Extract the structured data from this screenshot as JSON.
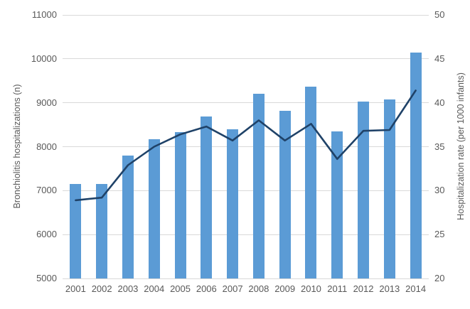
{
  "chart_data": {
    "type": "combo",
    "title": "",
    "categories": [
      "2001",
      "2002",
      "2003",
      "2004",
      "2005",
      "2006",
      "2007",
      "2008",
      "2009",
      "2010",
      "2011",
      "2012",
      "2013",
      "2014"
    ],
    "series": [
      {
        "name": "Bronchiolitis hospitalizations",
        "type": "bar",
        "axis": "left",
        "color": "#5B9BD5",
        "values": [
          7150,
          7150,
          7800,
          8170,
          8330,
          8690,
          8400,
          9200,
          8820,
          9360,
          8340,
          9020,
          9080,
          10150
        ]
      },
      {
        "name": "Hospitalization rate",
        "type": "line",
        "axis": "right",
        "color": "#1F4268",
        "values": [
          28.9,
          29.2,
          32.9,
          35.0,
          36.4,
          37.3,
          35.7,
          38.0,
          35.7,
          37.6,
          33.6,
          36.8,
          36.9,
          41.4
        ]
      }
    ],
    "left_axis": {
      "label": "Bronchiolitis hospitalizations (n)",
      "min": 5000,
      "max": 11000,
      "ticks": [
        11000,
        10000,
        9000,
        8000,
        7000,
        6000,
        5000
      ]
    },
    "right_axis": {
      "label": "Hospitalization rate (per 1000 infants)",
      "min": 20,
      "max": 50,
      "ticks": [
        50,
        45,
        40,
        35,
        30,
        25,
        20
      ]
    },
    "grid": true,
    "legend": "none",
    "colors": {
      "grid": "#D9D9D9",
      "tick_text": "#595959",
      "background": "#FFFFFF"
    }
  }
}
